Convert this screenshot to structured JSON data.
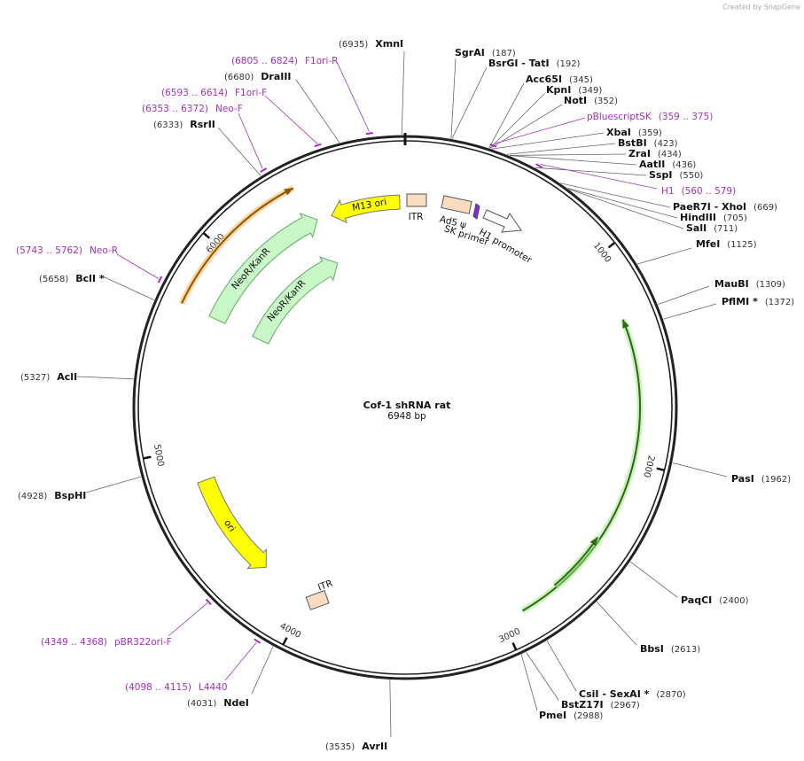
{
  "header": {
    "credit": "Created by SnapGene"
  },
  "map": {
    "name": "Cof-1 shRNA rat",
    "length": "6948 bp",
    "ticks": [
      "1000",
      "2000",
      "3000",
      "4000",
      "5000",
      "6000"
    ]
  },
  "sites": [
    {
      "name": "XmnI",
      "position": "(6935)"
    },
    {
      "name": "SgrAI",
      "position": "(187)"
    },
    {
      "name": "BsrGI - TatI",
      "position": "(192)"
    },
    {
      "name": "Acc65I",
      "position": "(345)"
    },
    {
      "name": "KpnI",
      "position": "(349)"
    },
    {
      "name": "NotI",
      "position": "(352)"
    },
    {
      "name": "XbaI",
      "position": "(359)"
    },
    {
      "name": "BstBI",
      "position": "(423)"
    },
    {
      "name": "ZraI",
      "position": "(434)"
    },
    {
      "name": "AatII",
      "position": "(436)"
    },
    {
      "name": "SspI",
      "position": "(550)"
    },
    {
      "name": "PaeR7I - XhoI",
      "position": "(669)"
    },
    {
      "name": "HindIII",
      "position": "(705)"
    },
    {
      "name": "SalI",
      "position": "(711)"
    },
    {
      "name": "MfeI",
      "position": "(1125)"
    },
    {
      "name": "MauBI",
      "position": "(1309)"
    },
    {
      "name": "PflMI *",
      "position": "(1372)"
    },
    {
      "name": "PasI",
      "position": "(1962)"
    },
    {
      "name": "PaqCI",
      "position": "(2400)"
    },
    {
      "name": "BbsI",
      "position": "(2613)"
    },
    {
      "name": "CsiI - SexAI *",
      "position": "(2870)"
    },
    {
      "name": "BstZ17I",
      "position": "(2967)"
    },
    {
      "name": "PmeI",
      "position": "(2988)"
    },
    {
      "name": "AvrII",
      "position": "(3535)"
    },
    {
      "name": "NdeI",
      "position": "(4031)"
    },
    {
      "name": "BspHI",
      "position": "(4928)"
    },
    {
      "name": "AclI",
      "position": "(5327)"
    },
    {
      "name": "BclI *",
      "position": "(5658)"
    },
    {
      "name": "RsrII",
      "position": "(6333)"
    },
    {
      "name": "DraIII",
      "position": "(6680)"
    }
  ],
  "primers": [
    {
      "name": "pBluescriptSK",
      "position": "(359 .. 375)"
    },
    {
      "name": "H1",
      "position": "(560 .. 579)"
    },
    {
      "name": "L4440",
      "position": "(4098 .. 4115)"
    },
    {
      "name": "pBR322ori-F",
      "position": "(4349 .. 4368)"
    },
    {
      "name": "Neo-R",
      "position": "(5743 .. 5762)"
    },
    {
      "name": "Neo-F",
      "position": "(6353 .. 6372)"
    },
    {
      "name": "F1ori-F",
      "position": "(6593 .. 6614)"
    },
    {
      "name": "F1ori-R",
      "position": "(6805 .. 6824)"
    }
  ],
  "features": [
    "M13 ori",
    "ITR",
    "Ad5 ψ",
    "SK primer",
    "H1 promoter",
    "NeoR/KanR",
    "NeoR/KanR",
    "ori",
    "ITR"
  ]
}
